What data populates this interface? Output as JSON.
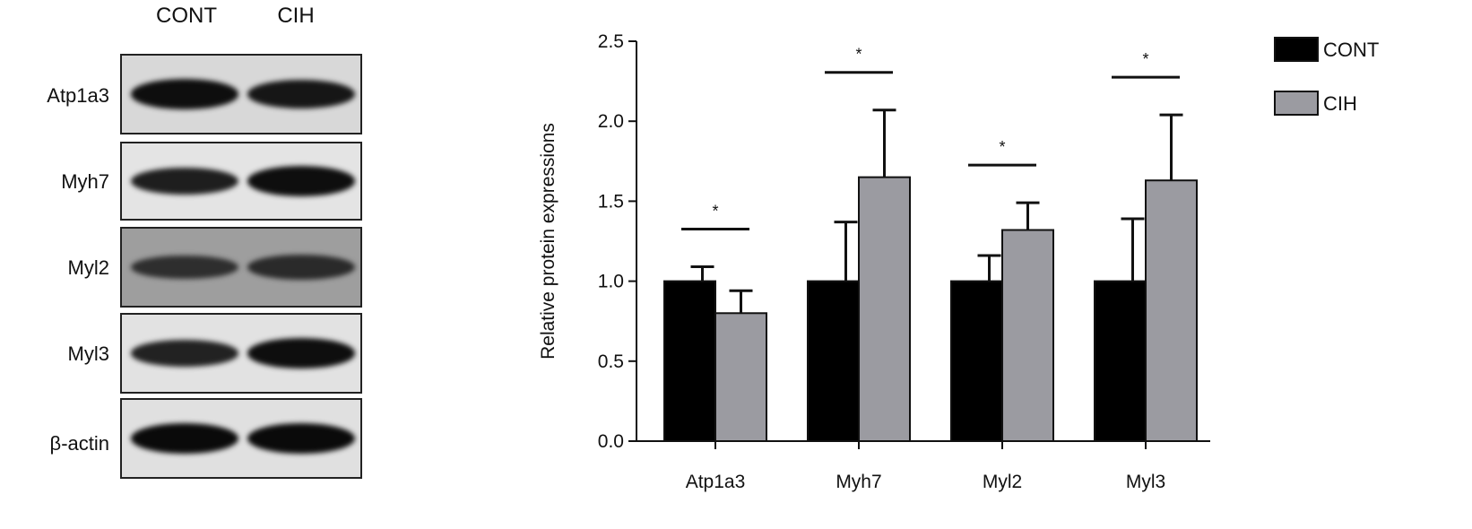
{
  "blot": {
    "lanes": [
      "CONT",
      "CIH"
    ],
    "rows": [
      {
        "label": "Atp1a3",
        "background": "#d8d8d8",
        "bands": [
          0.95,
          0.85
        ]
      },
      {
        "label": "Myh7",
        "background": "#e4e4e4",
        "bands": [
          0.75,
          0.95
        ]
      },
      {
        "label": "Myl2",
        "background": "#9e9e9e",
        "bands": [
          0.55,
          0.6
        ]
      },
      {
        "label": "Myl3",
        "background": "#e2e2e2",
        "bands": [
          0.7,
          0.95
        ]
      },
      {
        "label": "β-actin",
        "background": "#e0e0e0",
        "bands": [
          1.0,
          1.0
        ]
      }
    ]
  },
  "chart_data": {
    "type": "bar",
    "categories": [
      "Atp1a3",
      "Myh7",
      "Myl2",
      "Myl3"
    ],
    "series": [
      {
        "name": "CONT",
        "color": "#000000",
        "values": [
          1.0,
          1.0,
          1.0,
          1.0
        ],
        "errors": [
          0.09,
          0.37,
          0.16,
          0.39
        ]
      },
      {
        "name": "CIH",
        "color": "#9b9ba1",
        "values": [
          0.8,
          1.65,
          1.32,
          1.63
        ],
        "errors": [
          0.14,
          0.42,
          0.17,
          0.41
        ]
      }
    ],
    "significance": [
      "*",
      "*",
      "*",
      "*"
    ],
    "ylabel": "Relative protein expressions",
    "xlabel": "",
    "ylim": [
      0,
      2.5
    ],
    "yticks": [
      "0.0",
      "0.5",
      "1.0",
      "1.5",
      "2.0",
      "2.5"
    ],
    "legend_position": "top-right",
    "grid": false
  }
}
